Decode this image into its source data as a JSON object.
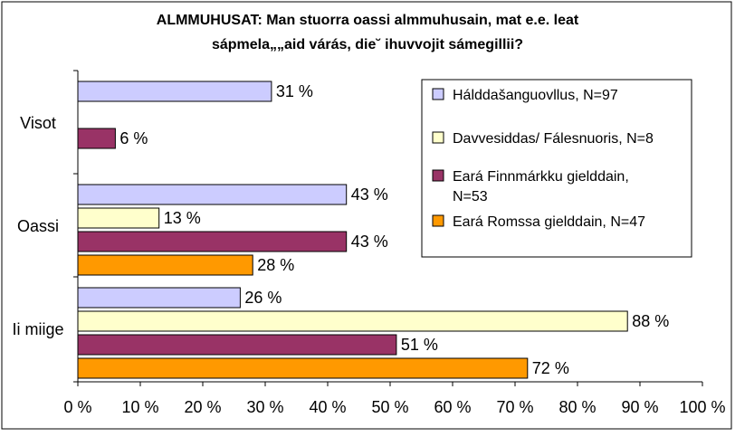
{
  "chart_data": {
    "type": "bar",
    "orientation": "horizontal",
    "title_lines": [
      "ALMMUHUSAT: Man stuorra oassi almmuhusain, mat e.e. leat",
      "sápmela„„aid várás, die˘ ihuvvojit sámegillii?"
    ],
    "categories": [
      "Visot",
      "Oassi",
      "Ii miige"
    ],
    "x_ticks": [
      "0 %",
      "10 %",
      "20 %",
      "30 %",
      "40 %",
      "50 %",
      "60 %",
      "70 %",
      "80 %",
      "90 %",
      "100 %"
    ],
    "xlim": [
      0,
      100
    ],
    "unit": "%",
    "series": [
      {
        "name": "Hálddašanguovllus, N=97",
        "color": "#ccccff",
        "values": [
          31,
          43,
          26
        ],
        "labels": [
          "31 %",
          "43 %",
          "26 %"
        ]
      },
      {
        "name": "Davvesiddas/ Fálesnuoris, N=8",
        "color": "#ffffcc",
        "values": [
          null,
          13,
          88
        ],
        "labels": [
          null,
          "13 %",
          "88 %"
        ]
      },
      {
        "name": "Eará Finnmárkku gielddain, N=53",
        "color": "#993366",
        "values": [
          6,
          43,
          51
        ],
        "labels": [
          "6 %",
          "43 %",
          "51 %"
        ]
      },
      {
        "name": "Eará Romssa gielddain, N=47",
        "color": "#ff9900",
        "values": [
          null,
          28,
          72
        ],
        "labels": [
          null,
          "28 %",
          "72 %"
        ]
      }
    ],
    "legend_position": "right",
    "grid": false
  }
}
